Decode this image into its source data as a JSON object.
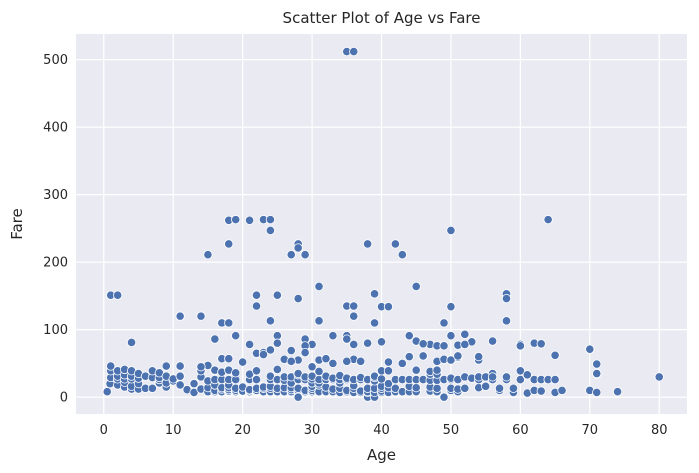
{
  "chart_data": {
    "type": "scatter",
    "title": "Scatter Plot of Age vs Fare",
    "xlabel": "Age",
    "ylabel": "Fare",
    "xlim": [
      -4,
      84
    ],
    "ylim": [
      -25,
      538
    ],
    "xticks": [
      0,
      10,
      20,
      30,
      40,
      50,
      60,
      70,
      80
    ],
    "yticks": [
      0,
      100,
      200,
      300,
      400,
      500
    ],
    "grid": true,
    "background": "#eaeaf2",
    "marker_color": "#4c72b0",
    "marker_edge": "#ffffff",
    "points": [
      [
        35,
        512
      ],
      [
        36,
        512
      ],
      [
        18,
        262
      ],
      [
        19,
        263
      ],
      [
        21,
        262
      ],
      [
        23,
        263
      ],
      [
        24,
        263
      ],
      [
        64,
        263
      ],
      [
        24,
        247
      ],
      [
        50,
        247
      ],
      [
        18,
        227
      ],
      [
        28,
        227
      ],
      [
        28,
        221
      ],
      [
        38,
        227
      ],
      [
        42,
        227
      ],
      [
        29,
        211
      ],
      [
        43,
        211
      ],
      [
        15,
        211
      ],
      [
        27,
        211
      ],
      [
        31,
        164
      ],
      [
        45,
        164
      ],
      [
        1,
        151
      ],
      [
        2,
        151
      ],
      [
        22,
        151
      ],
      [
        25,
        151
      ],
      [
        39,
        153
      ],
      [
        58,
        153
      ],
      [
        58,
        146
      ],
      [
        28,
        146
      ],
      [
        35,
        135
      ],
      [
        36,
        135
      ],
      [
        40,
        134
      ],
      [
        41,
        134
      ],
      [
        50,
        134
      ],
      [
        22,
        135
      ],
      [
        11,
        120
      ],
      [
        14,
        120
      ],
      [
        36,
        120
      ],
      [
        17,
        110
      ],
      [
        18,
        110
      ],
      [
        39,
        110
      ],
      [
        49,
        110
      ],
      [
        58,
        113
      ],
      [
        24,
        113
      ],
      [
        31,
        113
      ],
      [
        19,
        91
      ],
      [
        25,
        91
      ],
      [
        33,
        91
      ],
      [
        35,
        91
      ],
      [
        44,
        91
      ],
      [
        50,
        91
      ],
      [
        52,
        93
      ],
      [
        4,
        81
      ],
      [
        29,
        86
      ],
      [
        35,
        86
      ],
      [
        40,
        82
      ],
      [
        45,
        83
      ],
      [
        53,
        82
      ],
      [
        56,
        83
      ],
      [
        62,
        80
      ],
      [
        63,
        79
      ],
      [
        60,
        78
      ],
      [
        60,
        76
      ],
      [
        21,
        78
      ],
      [
        47,
        78
      ],
      [
        48,
        76
      ],
      [
        16,
        86
      ],
      [
        17,
        57
      ],
      [
        18,
        57
      ],
      [
        22,
        65
      ],
      [
        23,
        66
      ],
      [
        26,
        56
      ],
      [
        28,
        55
      ],
      [
        31,
        55
      ],
      [
        32,
        57
      ],
      [
        33,
        50
      ],
      [
        36,
        56
      ],
      [
        41,
        52
      ],
      [
        43,
        50
      ],
      [
        44,
        60
      ],
      [
        46,
        61
      ],
      [
        48,
        53
      ],
      [
        51,
        59
      ],
      [
        54,
        55
      ],
      [
        54,
        60
      ],
      [
        56,
        35
      ],
      [
        65,
        62
      ],
      [
        70,
        71
      ],
      [
        71,
        49
      ],
      [
        71,
        34
      ],
      [
        27,
        69
      ],
      [
        30,
        78
      ],
      [
        24,
        70
      ],
      [
        20,
        52
      ],
      [
        15,
        47
      ],
      [
        19,
        30
      ],
      [
        25,
        80
      ],
      [
        29,
        76
      ],
      [
        26,
        27
      ],
      [
        0.5,
        8
      ],
      [
        0.9,
        20
      ],
      [
        1,
        29
      ],
      [
        1,
        39
      ],
      [
        1,
        46
      ],
      [
        2,
        18
      ],
      [
        2,
        27
      ],
      [
        2,
        31
      ],
      [
        2,
        39
      ],
      [
        3,
        15
      ],
      [
        3,
        22
      ],
      [
        3,
        27
      ],
      [
        3,
        33
      ],
      [
        3,
        41
      ],
      [
        4,
        12
      ],
      [
        4,
        16
      ],
      [
        4,
        27
      ],
      [
        4,
        31
      ],
      [
        4,
        39
      ],
      [
        5,
        12
      ],
      [
        5,
        20
      ],
      [
        5,
        28
      ],
      [
        5,
        35
      ],
      [
        6,
        13
      ],
      [
        6,
        31
      ],
      [
        7,
        13
      ],
      [
        7,
        29
      ],
      [
        7,
        39
      ],
      [
        8,
        21
      ],
      [
        8,
        26
      ],
      [
        8,
        29
      ],
      [
        8,
        36
      ],
      [
        9,
        15
      ],
      [
        9,
        21
      ],
      [
        9,
        31
      ],
      [
        9,
        46
      ],
      [
        10,
        24
      ],
      [
        10,
        27
      ],
      [
        11,
        18
      ],
      [
        11,
        31
      ],
      [
        11,
        46
      ],
      [
        12,
        11
      ],
      [
        13,
        7
      ],
      [
        13,
        20
      ],
      [
        14,
        12
      ],
      [
        14,
        30
      ],
      [
        14,
        39
      ],
      [
        14,
        45
      ],
      [
        15,
        8
      ],
      [
        15,
        14
      ],
      [
        15,
        24
      ],
      [
        16,
        8
      ],
      [
        16,
        10
      ],
      [
        16,
        18
      ],
      [
        16,
        26
      ],
      [
        16,
        39
      ],
      [
        16,
        40
      ],
      [
        17,
        7
      ],
      [
        17,
        8
      ],
      [
        17,
        12
      ],
      [
        17,
        14
      ],
      [
        17,
        26
      ],
      [
        17,
        37
      ],
      [
        18,
        7
      ],
      [
        18,
        8
      ],
      [
        18,
        9
      ],
      [
        18,
        11
      ],
      [
        18,
        14
      ],
      [
        18,
        18
      ],
      [
        18,
        26
      ],
      [
        18,
        40
      ],
      [
        19,
        7
      ],
      [
        19,
        8
      ],
      [
        19,
        10
      ],
      [
        19,
        13
      ],
      [
        19,
        26
      ],
      [
        19,
        36
      ],
      [
        20,
        7
      ],
      [
        20,
        8
      ],
      [
        20,
        9
      ],
      [
        20,
        15
      ],
      [
        21,
        7
      ],
      [
        21,
        8
      ],
      [
        21,
        10
      ],
      [
        21,
        11
      ],
      [
        21,
        26
      ],
      [
        21,
        34
      ],
      [
        22,
        7
      ],
      [
        22,
        8
      ],
      [
        22,
        9
      ],
      [
        22,
        10
      ],
      [
        22,
        13
      ],
      [
        22,
        26
      ],
      [
        22,
        39
      ],
      [
        23,
        7
      ],
      [
        23,
        8
      ],
      [
        23,
        13
      ],
      [
        23,
        15
      ],
      [
        23,
        63
      ],
      [
        24,
        7
      ],
      [
        24,
        8
      ],
      [
        24,
        13
      ],
      [
        24,
        16
      ],
      [
        24,
        26
      ],
      [
        24,
        31
      ],
      [
        25,
        7
      ],
      [
        25,
        8
      ],
      [
        25,
        13
      ],
      [
        25,
        26
      ],
      [
        25,
        41
      ],
      [
        26,
        7
      ],
      [
        26,
        8
      ],
      [
        26,
        14
      ],
      [
        26,
        25
      ],
      [
        26,
        30
      ],
      [
        27,
        7
      ],
      [
        27,
        8
      ],
      [
        27,
        11
      ],
      [
        27,
        14
      ],
      [
        27,
        21
      ],
      [
        27,
        30
      ],
      [
        27,
        53
      ],
      [
        28,
        7
      ],
      [
        28,
        8
      ],
      [
        28,
        10
      ],
      [
        28,
        13
      ],
      [
        28,
        26
      ],
      [
        28,
        33
      ],
      [
        28,
        35
      ],
      [
        28,
        0
      ],
      [
        29,
        7
      ],
      [
        29,
        8
      ],
      [
        29,
        10
      ],
      [
        29,
        26
      ],
      [
        29,
        30
      ],
      [
        29,
        66
      ],
      [
        30,
        7
      ],
      [
        30,
        8
      ],
      [
        30,
        10
      ],
      [
        30,
        13
      ],
      [
        30,
        16
      ],
      [
        30,
        21
      ],
      [
        30,
        27
      ],
      [
        30,
        31
      ],
      [
        30,
        45
      ],
      [
        31,
        7
      ],
      [
        31,
        8
      ],
      [
        31,
        18
      ],
      [
        31,
        21
      ],
      [
        31,
        26
      ],
      [
        31,
        38
      ],
      [
        32,
        7
      ],
      [
        32,
        8
      ],
      [
        32,
        15
      ],
      [
        32,
        26
      ],
      [
        32,
        31
      ],
      [
        33,
        7
      ],
      [
        33,
        8
      ],
      [
        33,
        12
      ],
      [
        33,
        26
      ],
      [
        33,
        28
      ],
      [
        34,
        7
      ],
      [
        34,
        13
      ],
      [
        34,
        21
      ],
      [
        34,
        26
      ],
      [
        34,
        32
      ],
      [
        35,
        8
      ],
      [
        35,
        10
      ],
      [
        35,
        26
      ],
      [
        35,
        28
      ],
      [
        35,
        53
      ],
      [
        36,
        7
      ],
      [
        36,
        13
      ],
      [
        36,
        17
      ],
      [
        36,
        26
      ],
      [
        36,
        78
      ],
      [
        37,
        7
      ],
      [
        37,
        9
      ],
      [
        37,
        26
      ],
      [
        37,
        29
      ],
      [
        37,
        53
      ],
      [
        38,
        0
      ],
      [
        38,
        7
      ],
      [
        38,
        8
      ],
      [
        38,
        13
      ],
      [
        38,
        26
      ],
      [
        38,
        80
      ],
      [
        39,
        0
      ],
      [
        39,
        7
      ],
      [
        39,
        13
      ],
      [
        39,
        24
      ],
      [
        39,
        29
      ],
      [
        39,
        31
      ],
      [
        40,
        7
      ],
      [
        40,
        9
      ],
      [
        40,
        13
      ],
      [
        40,
        16
      ],
      [
        40,
        27
      ],
      [
        40,
        39
      ],
      [
        41,
        7
      ],
      [
        41,
        14
      ],
      [
        41,
        20
      ],
      [
        41,
        39
      ],
      [
        42,
        7
      ],
      [
        42,
        8
      ],
      [
        42,
        13
      ],
      [
        42,
        26
      ],
      [
        43,
        8
      ],
      [
        43,
        26
      ],
      [
        44,
        8
      ],
      [
        44,
        16
      ],
      [
        44,
        26
      ],
      [
        45,
        7
      ],
      [
        45,
        8
      ],
      [
        45,
        14
      ],
      [
        45,
        26
      ],
      [
        45,
        40
      ],
      [
        46,
        26
      ],
      [
        46,
        61
      ],
      [
        46,
        79
      ],
      [
        47,
        9
      ],
      [
        47,
        15
      ],
      [
        47,
        25
      ],
      [
        47,
        34
      ],
      [
        47,
        38
      ],
      [
        48,
        8
      ],
      [
        48,
        13
      ],
      [
        48,
        25
      ],
      [
        48,
        34
      ],
      [
        48,
        40
      ],
      [
        49,
        0
      ],
      [
        49,
        26
      ],
      [
        49,
        56
      ],
      [
        49,
        76
      ],
      [
        50,
        10
      ],
      [
        50,
        13
      ],
      [
        50,
        26
      ],
      [
        50,
        28
      ],
      [
        50,
        55
      ],
      [
        51,
        8
      ],
      [
        51,
        12
      ],
      [
        51,
        26
      ],
      [
        51,
        61
      ],
      [
        51,
        77
      ],
      [
        52,
        13
      ],
      [
        52,
        30
      ],
      [
        52,
        78
      ],
      [
        53,
        28
      ],
      [
        54,
        14
      ],
      [
        54,
        26
      ],
      [
        54,
        30
      ],
      [
        55,
        16
      ],
      [
        55,
        30
      ],
      [
        56,
        26
      ],
      [
        56,
        30
      ],
      [
        57,
        10
      ],
      [
        57,
        13
      ],
      [
        58,
        26
      ],
      [
        58,
        30
      ],
      [
        59,
        7
      ],
      [
        59,
        13
      ],
      [
        60,
        26
      ],
      [
        60,
        39
      ],
      [
        61,
        6
      ],
      [
        61,
        32
      ],
      [
        61,
        33
      ],
      [
        62,
        10
      ],
      [
        62,
        26
      ],
      [
        63,
        9
      ],
      [
        63,
        26
      ],
      [
        64,
        26
      ],
      [
        65,
        7
      ],
      [
        65,
        26
      ],
      [
        66,
        10
      ],
      [
        70,
        10
      ],
      [
        70,
        71
      ],
      [
        71,
        7
      ],
      [
        71,
        35
      ],
      [
        74,
        8
      ],
      [
        80,
        30
      ]
    ]
  }
}
